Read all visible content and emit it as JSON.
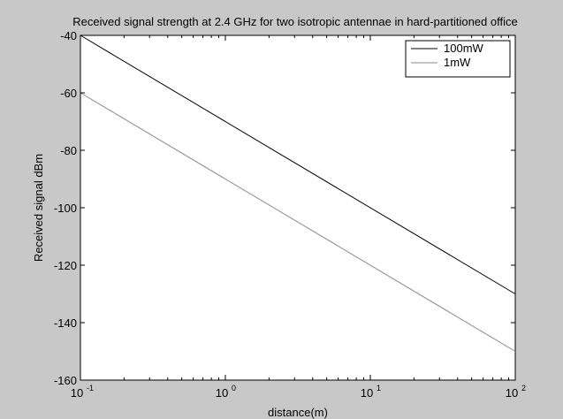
{
  "chart_data": {
    "type": "line",
    "title": "Received signal strength at 2.4 GHz for two isotropic antennae in hard-partitioned office",
    "xlabel": "distance(m)",
    "ylabel": "Received signal dBm",
    "xscale": "log",
    "xlim": [
      0.1,
      100
    ],
    "ylim": [
      -160,
      -40
    ],
    "grid": false,
    "legend_position": "top-right",
    "x_ticks": [
      {
        "value": 0.1,
        "base": "10",
        "exp": "-1"
      },
      {
        "value": 1,
        "base": "10",
        "exp": "0"
      },
      {
        "value": 10,
        "base": "10",
        "exp": "1"
      },
      {
        "value": 100,
        "base": "10",
        "exp": "2"
      }
    ],
    "y_ticks": [
      -40,
      -60,
      -80,
      -100,
      -120,
      -140,
      -160
    ],
    "series": [
      {
        "name": "100mW",
        "color": "#000000",
        "x": [
          0.1,
          100
        ],
        "y": [
          -40,
          -130
        ]
      },
      {
        "name": "1mW",
        "color": "#8a8a8a",
        "x": [
          0.1,
          100
        ],
        "y": [
          -60,
          -150
        ]
      }
    ]
  }
}
